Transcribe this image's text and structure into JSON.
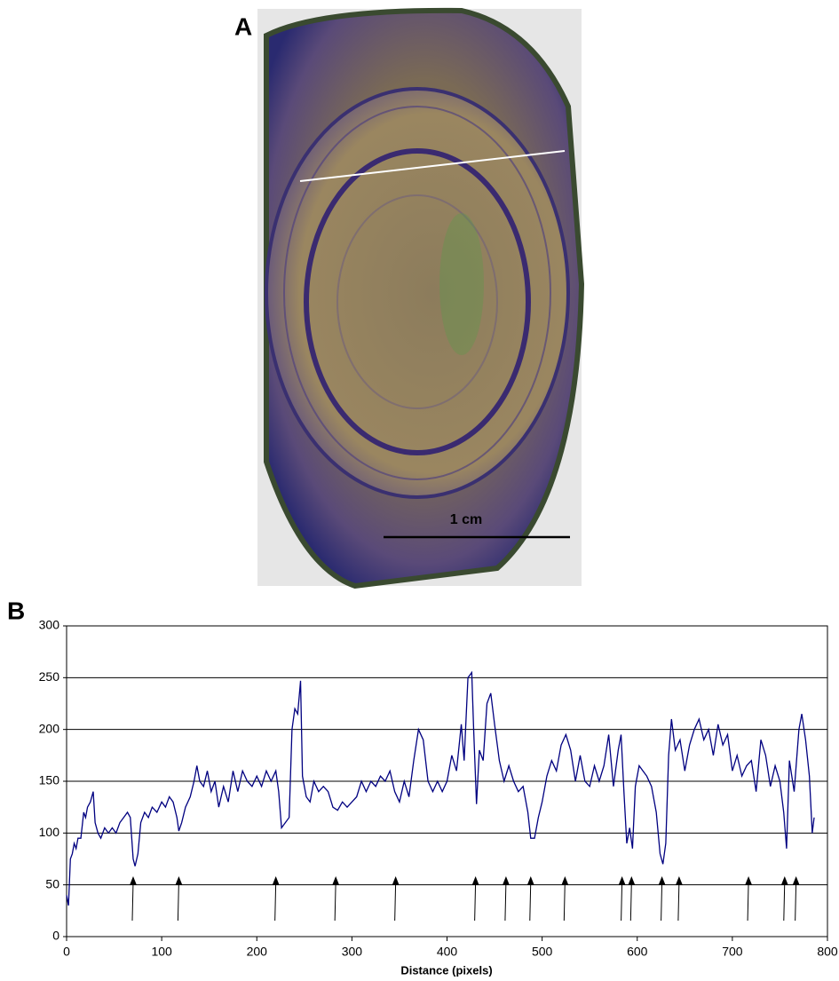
{
  "panel_a": {
    "label": "A",
    "scale_text": "1 cm"
  },
  "chart_data": {
    "type": "line",
    "panel_label": "B",
    "x_label": "Distance (pixels)",
    "x": [
      0,
      2,
      4,
      6,
      8,
      10,
      12,
      15,
      18,
      20,
      22,
      25,
      28,
      30,
      33,
      36,
      40,
      44,
      48,
      52,
      56,
      60,
      64,
      67,
      70,
      72,
      75,
      78,
      82,
      86,
      90,
      95,
      100,
      104,
      108,
      112,
      116,
      118,
      121,
      125,
      130,
      134,
      137,
      140,
      144,
      148,
      152,
      156,
      160,
      165,
      170,
      175,
      180,
      185,
      190,
      195,
      200,
      205,
      210,
      215,
      220,
      223,
      226,
      230,
      234,
      237,
      240,
      243,
      246,
      248,
      252,
      256,
      260,
      265,
      270,
      275,
      280,
      285,
      290,
      295,
      300,
      305,
      310,
      315,
      320,
      325,
      330,
      335,
      340,
      345,
      350,
      355,
      360,
      365,
      370,
      375,
      380,
      385,
      390,
      395,
      400,
      405,
      410,
      415,
      418,
      422,
      426,
      428,
      431,
      434,
      438,
      442,
      446,
      450,
      455,
      460,
      465,
      470,
      475,
      480,
      485,
      488,
      492,
      496,
      500,
      505,
      510,
      515,
      520,
      525,
      530,
      535,
      540,
      545,
      550,
      555,
      560,
      565,
      570,
      575,
      580,
      583,
      586,
      589,
      592,
      595,
      598,
      602,
      606,
      610,
      615,
      620,
      624,
      627,
      630,
      633,
      636,
      640,
      645,
      650,
      655,
      660,
      665,
      670,
      675,
      680,
      685,
      690,
      695,
      700,
      705,
      710,
      715,
      720,
      725,
      730,
      735,
      740,
      745,
      750,
      754,
      757,
      760,
      765,
      770,
      773,
      777,
      781,
      784,
      786
    ],
    "series": [
      {
        "color": "#000080",
        "values": [
          40,
          30,
          75,
          80,
          90,
          85,
          95,
          95,
          120,
          115,
          125,
          130,
          140,
          110,
          100,
          95,
          105,
          100,
          105,
          100,
          110,
          115,
          120,
          115,
          75,
          68,
          80,
          110,
          120,
          115,
          125,
          120,
          130,
          125,
          135,
          130,
          115,
          102,
          110,
          125,
          135,
          150,
          165,
          150,
          145,
          160,
          140,
          150,
          125,
          145,
          130,
          160,
          140,
          160,
          150,
          145,
          155,
          145,
          160,
          150,
          160,
          140,
          105,
          110,
          115,
          200,
          220,
          215,
          247,
          155,
          135,
          130,
          150,
          140,
          145,
          140,
          125,
          122,
          130,
          125,
          130,
          135,
          150,
          140,
          150,
          145,
          155,
          150,
          160,
          140,
          130,
          150,
          135,
          170,
          200,
          190,
          150,
          140,
          150,
          140,
          150,
          175,
          160,
          205,
          170,
          250,
          255,
          200,
          128,
          180,
          170,
          225,
          235,
          205,
          170,
          150,
          165,
          150,
          140,
          145,
          120,
          95,
          95,
          115,
          130,
          155,
          170,
          160,
          185,
          195,
          180,
          150,
          175,
          150,
          145,
          165,
          150,
          165,
          195,
          145,
          180,
          195,
          140,
          90,
          105,
          85,
          145,
          165,
          160,
          155,
          145,
          120,
          80,
          70,
          90,
          175,
          210,
          180,
          190,
          160,
          185,
          200,
          210,
          190,
          200,
          175,
          205,
          185,
          195,
          160,
          175,
          155,
          165,
          170,
          140,
          190,
          175,
          145,
          165,
          150,
          120,
          85,
          170,
          140,
          200,
          215,
          190,
          155,
          100,
          115
        ]
      }
    ],
    "arrows_x": [
      70,
      118,
      220,
      283,
      346,
      430,
      462,
      488,
      524,
      584,
      594,
      626,
      644,
      717,
      755,
      767
    ],
    "xlim": [
      0,
      800
    ],
    "xticks": [
      0,
      100,
      200,
      300,
      400,
      500,
      600,
      700,
      800
    ],
    "ylim": [
      0,
      300
    ],
    "yticks": [
      0,
      50,
      100,
      150,
      200,
      250,
      300
    ],
    "grid": true
  }
}
